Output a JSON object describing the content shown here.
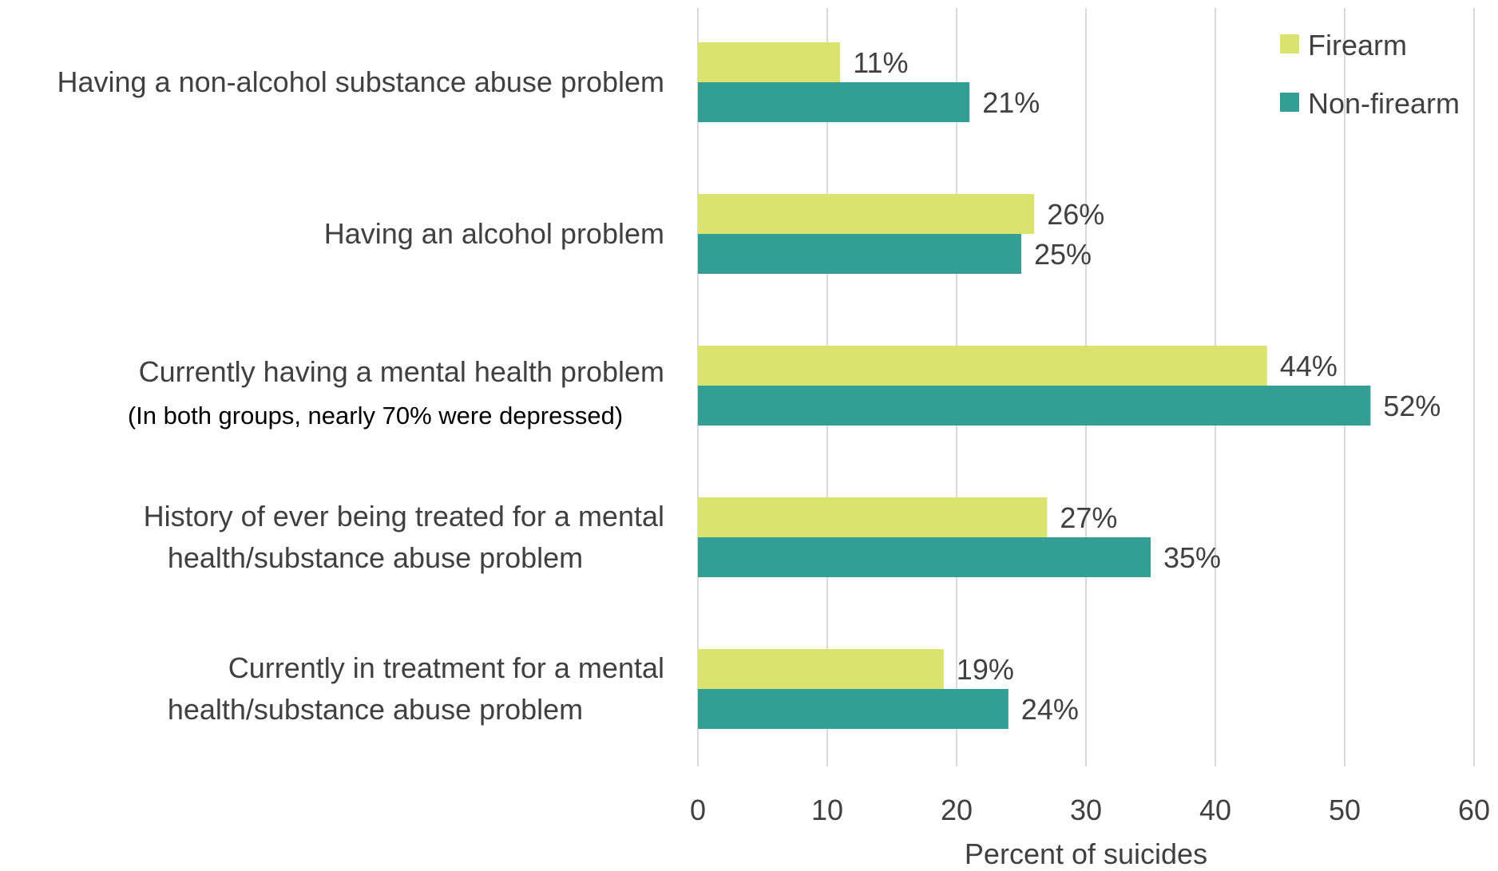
{
  "chart_data": {
    "type": "bar",
    "orientation": "horizontal",
    "title": "",
    "xlabel": "Percent of suicides",
    "ylabel": "",
    "xlim": [
      0,
      60
    ],
    "x_ticks": [
      0,
      10,
      20,
      30,
      40,
      50,
      60
    ],
    "grid": "vertical",
    "legend_position": "top-right",
    "categories": [
      {
        "lines": [
          "Having a non-alcohol substance abuse problem"
        ],
        "note": ""
      },
      {
        "lines": [
          "Having an alcohol problem"
        ],
        "note": ""
      },
      {
        "lines": [
          "Currently having a mental health problem"
        ],
        "note": "(In both groups, nearly 70% were depressed)"
      },
      {
        "lines": [
          "History of ever being treated for a mental",
          "health/substance abuse problem"
        ],
        "note": ""
      },
      {
        "lines": [
          "Currently in treatment for a mental",
          "health/substance abuse problem"
        ],
        "note": ""
      }
    ],
    "series": [
      {
        "name": "Firearm",
        "color": "#d9e36d",
        "values": [
          11,
          26,
          44,
          27,
          19
        ],
        "labels": [
          "11%",
          "26%",
          "44%",
          "27%",
          "19%"
        ]
      },
      {
        "name": "Non-firearm",
        "color": "#339e94",
        "values": [
          21,
          25,
          52,
          35,
          24
        ],
        "labels": [
          "21%",
          "25%",
          "52%",
          "35%",
          "24%"
        ]
      }
    ]
  }
}
